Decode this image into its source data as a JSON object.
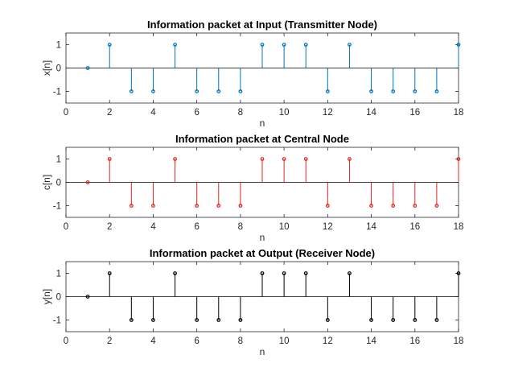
{
  "chart_data": [
    {
      "type": "stem",
      "title": "Information packet at Input (Transmitter Node)",
      "xlabel": "n",
      "ylabel": "x[n]",
      "xlim": [
        0,
        18
      ],
      "ylim": [
        -1.5,
        1.5
      ],
      "xticks": [
        0,
        2,
        4,
        6,
        8,
        10,
        12,
        14,
        16,
        18
      ],
      "yticks": [
        -1,
        0,
        1
      ],
      "color": "#0072bd",
      "grid": false,
      "x": [
        1,
        2,
        3,
        4,
        5,
        6,
        7,
        8,
        9,
        10,
        11,
        12,
        13,
        14,
        15,
        16,
        17,
        18
      ],
      "values": [
        0,
        1,
        -1,
        -1,
        1,
        -1,
        -1,
        -1,
        1,
        1,
        1,
        -1,
        1,
        -1,
        -1,
        -1,
        -1,
        1
      ]
    },
    {
      "type": "stem",
      "title": "Information packet at Central Node",
      "xlabel": "n",
      "ylabel": "c[n]",
      "xlim": [
        0,
        18
      ],
      "ylim": [
        -1.5,
        1.5
      ],
      "xticks": [
        0,
        2,
        4,
        6,
        8,
        10,
        12,
        14,
        16,
        18
      ],
      "yticks": [
        -1,
        0,
        1
      ],
      "color": "#e3261c",
      "grid": false,
      "x": [
        1,
        2,
        3,
        4,
        5,
        6,
        7,
        8,
        9,
        10,
        11,
        12,
        13,
        14,
        15,
        16,
        17,
        18
      ],
      "values": [
        0,
        1,
        -1,
        -1,
        1,
        -1,
        -1,
        -1,
        1,
        1,
        1,
        -1,
        1,
        -1,
        -1,
        -1,
        -1,
        1
      ]
    },
    {
      "type": "stem",
      "title": "Information packet at Output (Receiver Node)",
      "xlabel": "n",
      "ylabel": "y[n]",
      "xlim": [
        0,
        18
      ],
      "ylim": [
        -1.5,
        1.5
      ],
      "xticks": [
        0,
        2,
        4,
        6,
        8,
        10,
        12,
        14,
        16,
        18
      ],
      "yticks": [
        -1,
        0,
        1
      ],
      "color": "#000000",
      "grid": false,
      "x": [
        1,
        2,
        3,
        4,
        5,
        6,
        7,
        8,
        9,
        10,
        11,
        12,
        13,
        14,
        15,
        16,
        17,
        18
      ],
      "values": [
        0,
        1,
        -1,
        -1,
        1,
        -1,
        -1,
        -1,
        1,
        1,
        1,
        -1,
        1,
        -1,
        -1,
        -1,
        -1,
        1
      ]
    }
  ]
}
